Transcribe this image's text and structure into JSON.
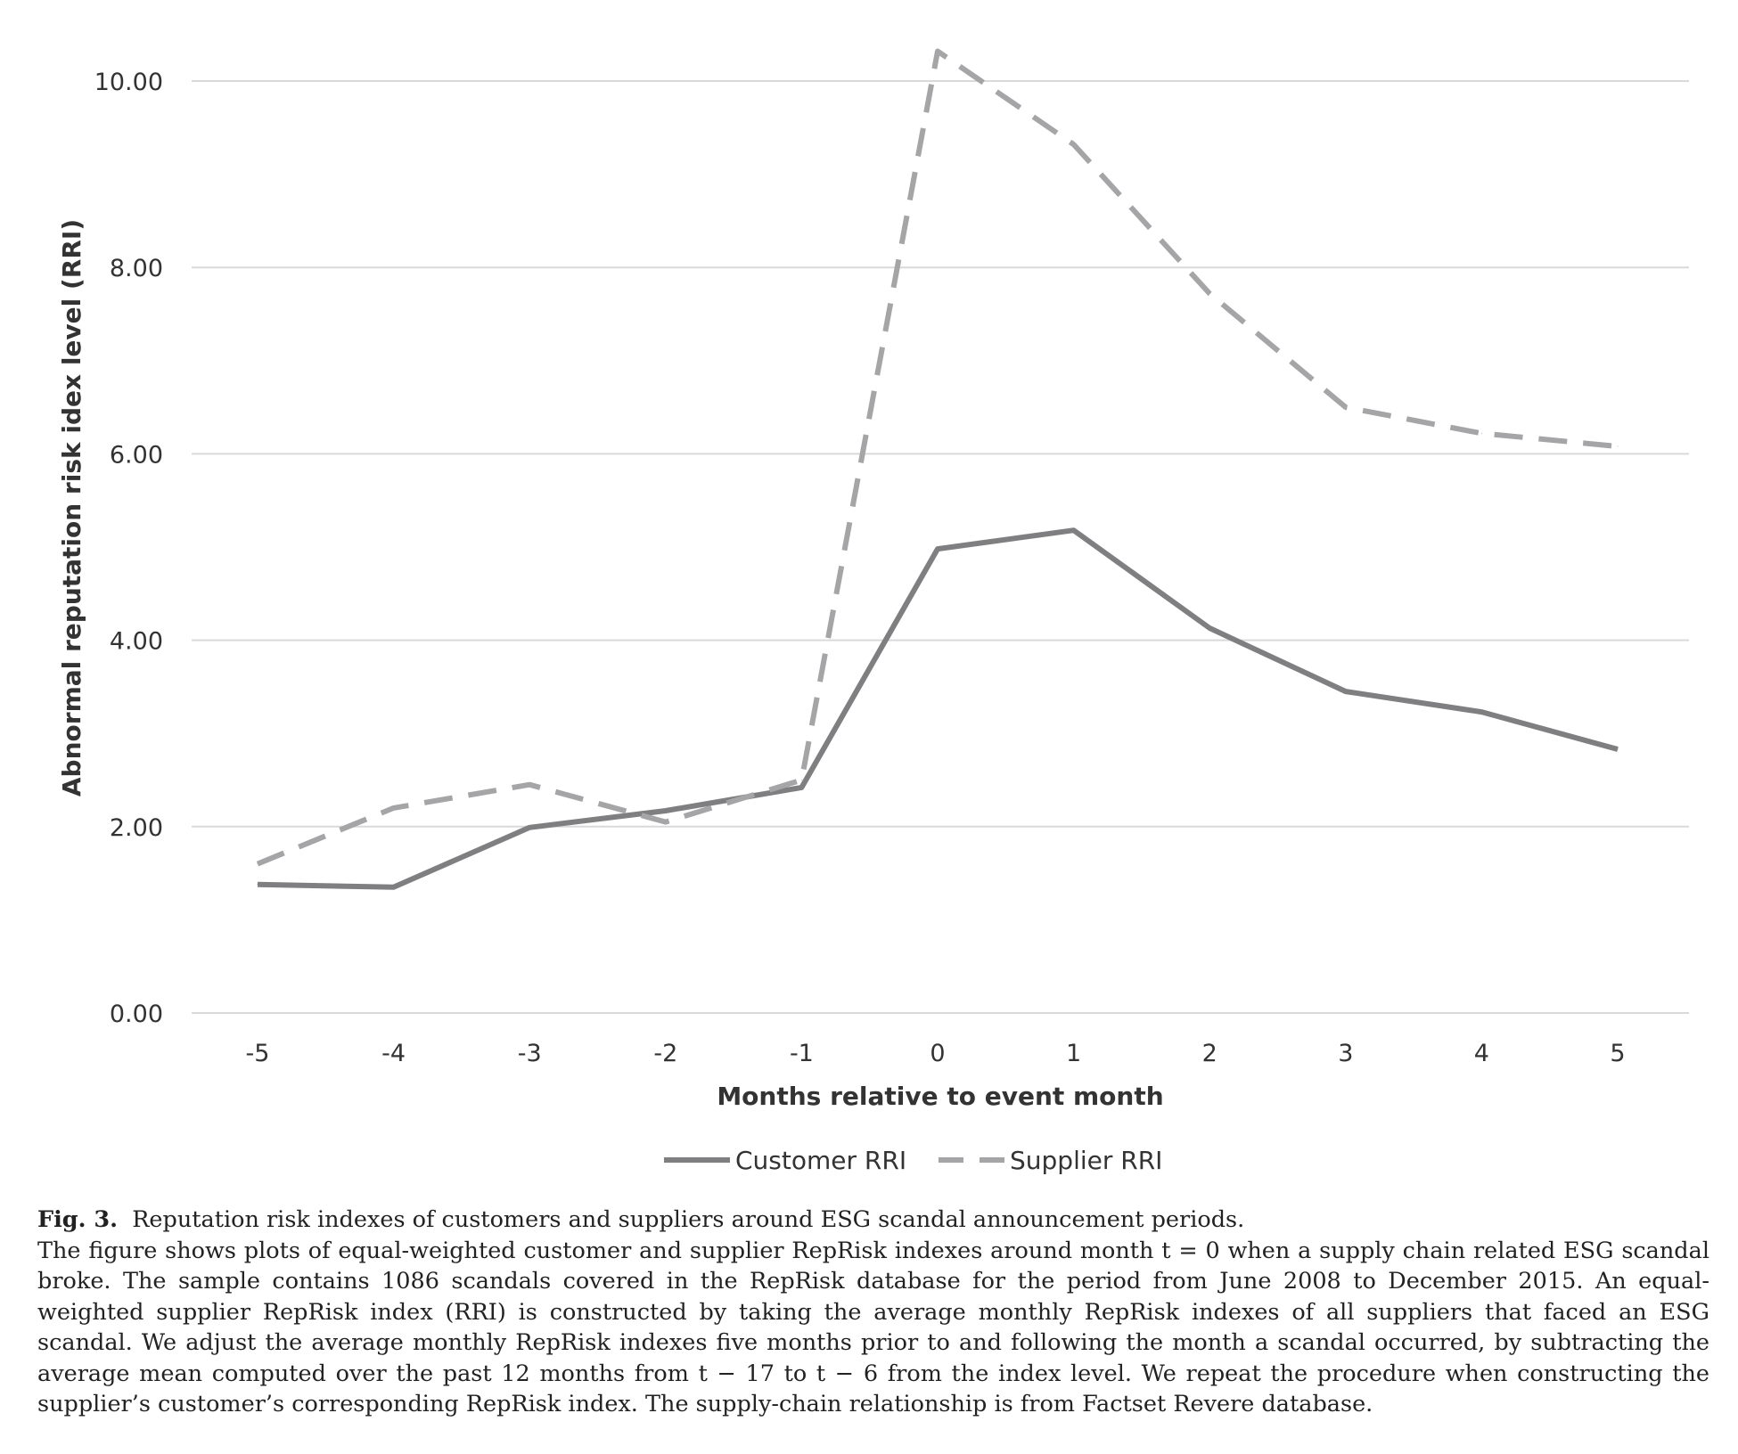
{
  "chart_data": {
    "type": "line",
    "categories": [
      "-5",
      "-4",
      "-3",
      "-2",
      "-1",
      "0",
      "1",
      "2",
      "3",
      "4",
      "5"
    ],
    "series": [
      {
        "name": "Customer RRI",
        "values": [
          1.38,
          1.35,
          1.99,
          2.17,
          2.42,
          4.98,
          5.18,
          4.13,
          3.45,
          3.23,
          2.83
        ],
        "color": "#7f7f81",
        "dash": "solid"
      },
      {
        "name": "Supplier RRI",
        "values": [
          1.6,
          2.2,
          2.45,
          2.05,
          2.5,
          10.32,
          9.32,
          7.72,
          6.5,
          6.22,
          6.08
        ],
        "color": "#a5a5a7",
        "dash": "dashed"
      }
    ],
    "title": "",
    "xlabel": "Months relative to event month",
    "ylabel": "Abnormal reputation risk idex level (RRI)",
    "ylim": [
      0,
      10
    ],
    "yticks": [
      "0.00",
      "2.00",
      "4.00",
      "6.00",
      "8.00",
      "10.00"
    ],
    "grid": "horizontal",
    "legend_position": "bottom"
  },
  "caption": {
    "label": "Fig. 3.",
    "title": "Reputation risk indexes of customers and suppliers around ESG scandal announcement periods.",
    "body": "The figure shows plots of equal-weighted customer and supplier RepRisk indexes around month t = 0 when a supply chain related ESG scandal broke. The sample contains 1086 scandals covered in the RepRisk database for the period from June 2008 to December 2015. An equal-weighted supplier RepRisk index (RRI) is constructed by taking the average monthly RepRisk indexes of all suppliers that faced an ESG scandal. We adjust the average monthly RepRisk indexes five months prior to and following the month a scandal occurred, by subtracting the average mean computed over the past 12 months from t − 17 to t − 6 from the index level. We repeat the procedure when constructing the supplier’s customer’s corresponding RepRisk index. The supply-chain relationship is from Factset Revere database."
  }
}
